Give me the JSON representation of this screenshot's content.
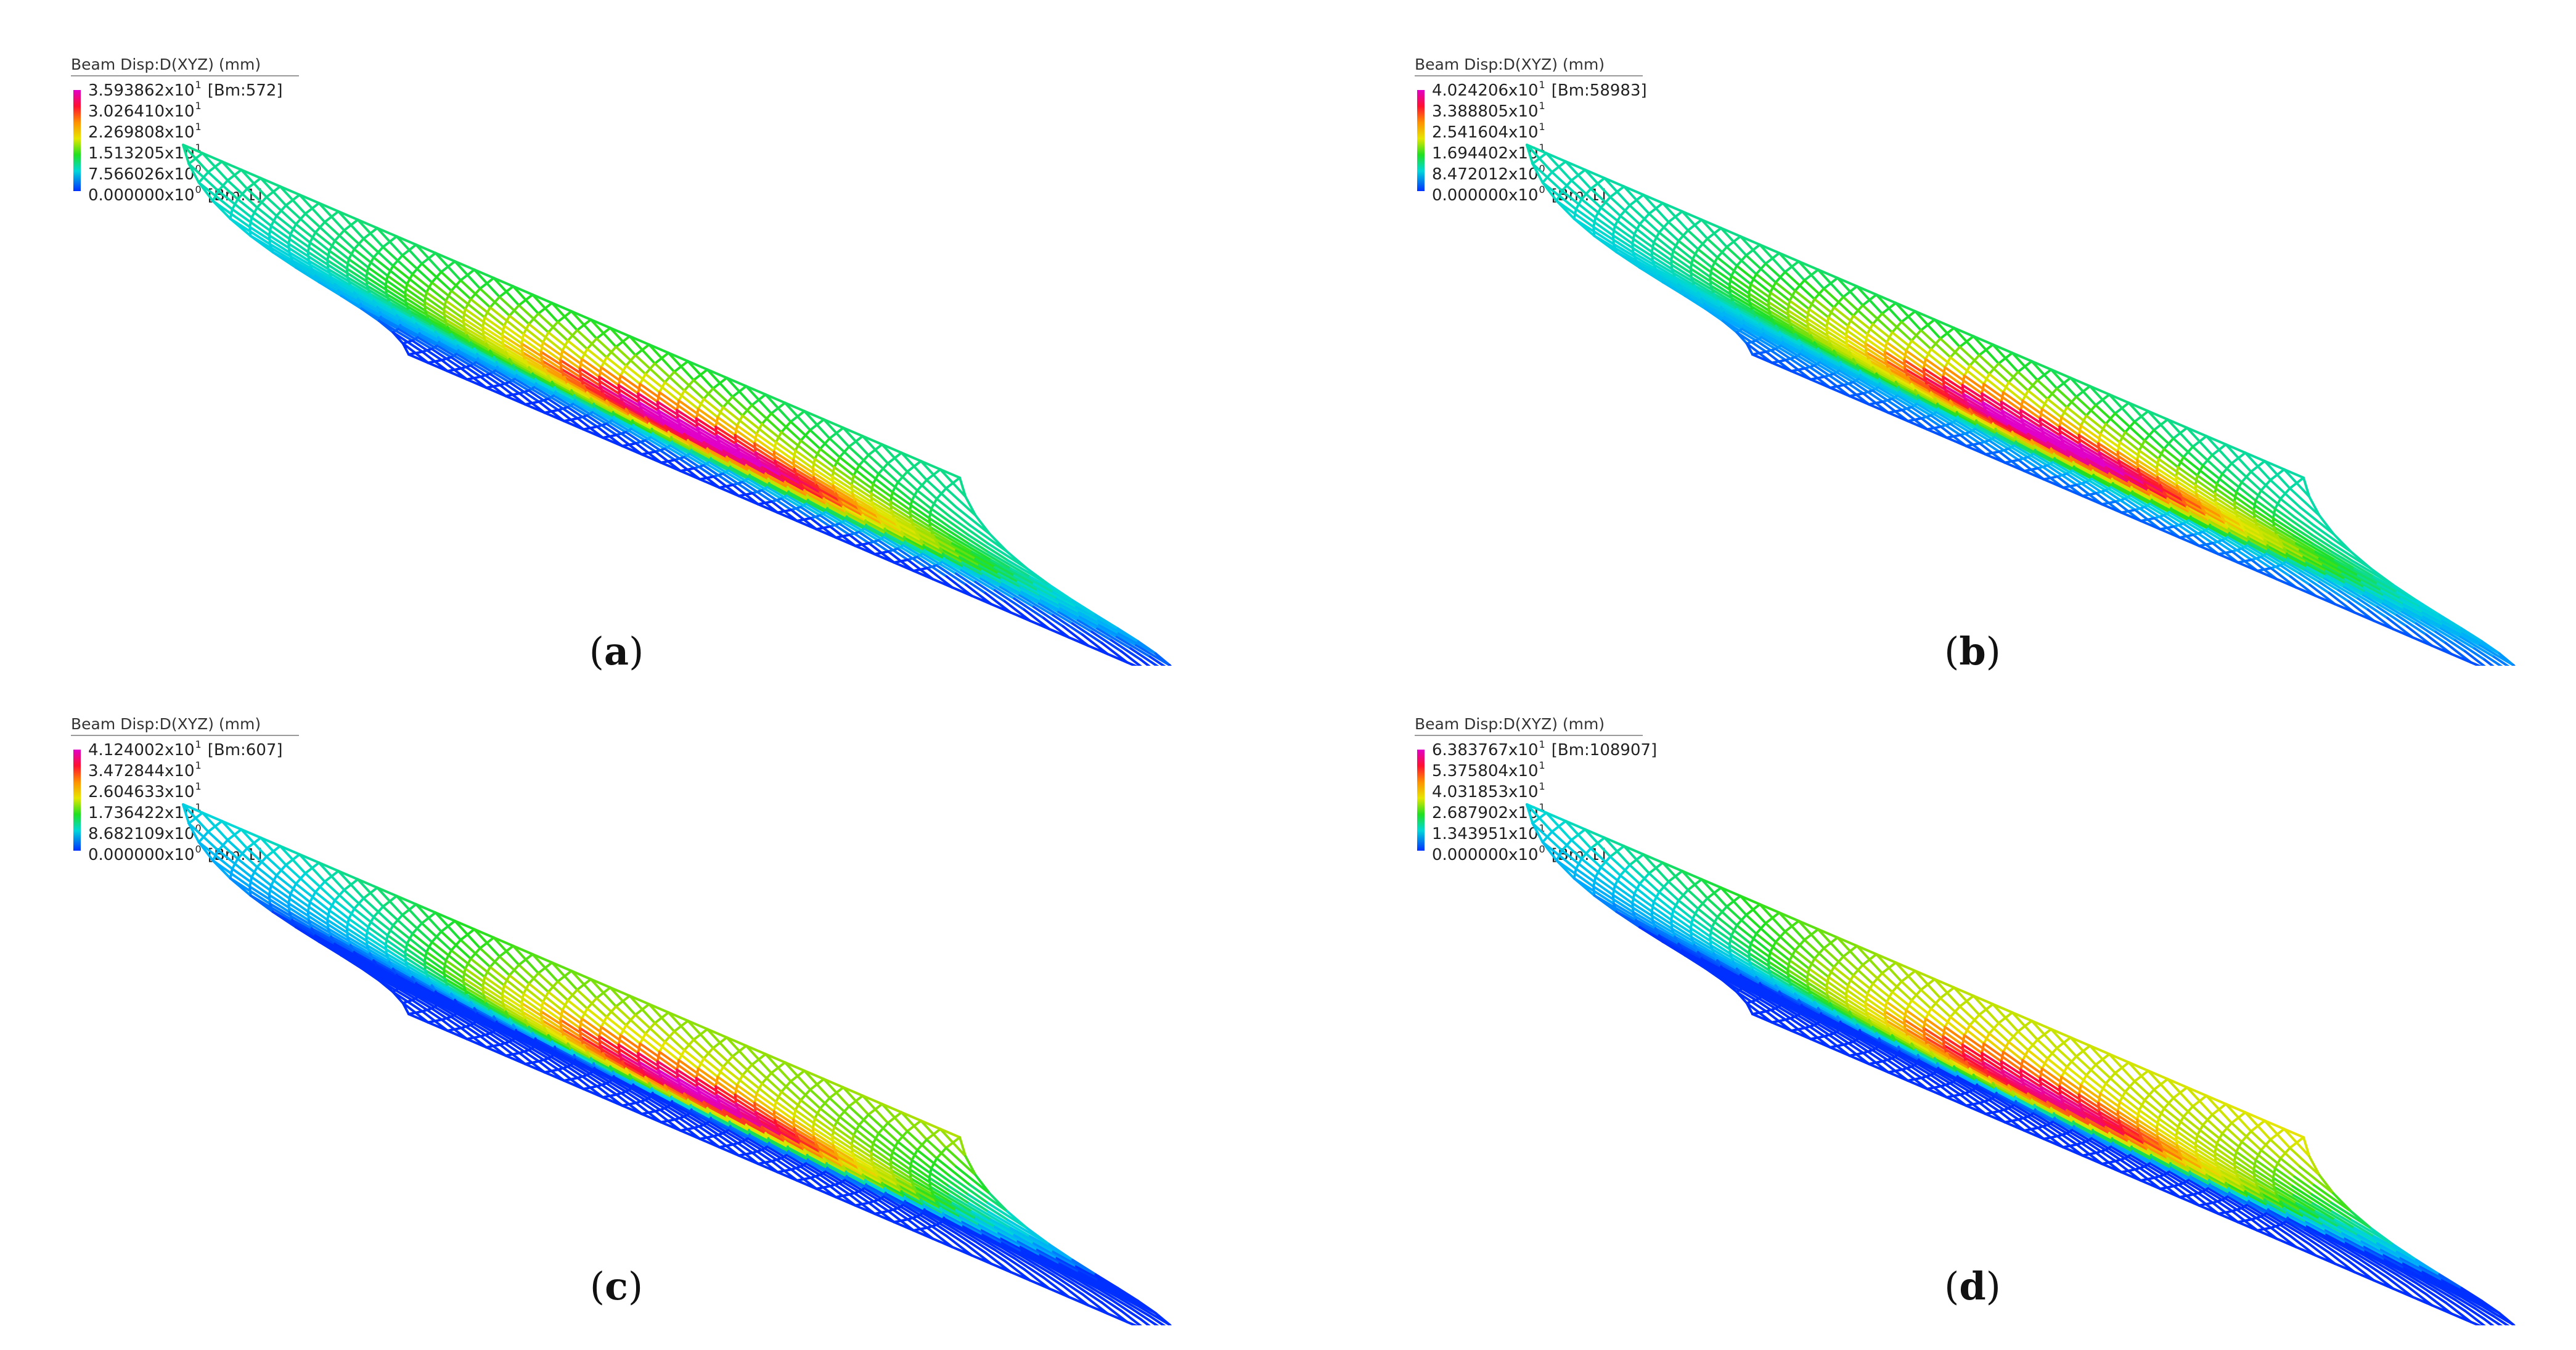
{
  "panels": [
    {
      "caption_letter": "a",
      "legend": {
        "title": "Beam Disp:D(XYZ)  (mm)",
        "entries": [
          {
            "mantissa": "3.593862x10",
            "exponent": "1",
            "suffix": "[Bm:572]"
          },
          {
            "mantissa": "3.026410x10",
            "exponent": "1",
            "suffix": ""
          },
          {
            "mantissa": "2.269808x10",
            "exponent": "1",
            "suffix": ""
          },
          {
            "mantissa": "1.513205x10",
            "exponent": "1",
            "suffix": ""
          },
          {
            "mantissa": "7.566026x10",
            "exponent": "0",
            "suffix": ""
          },
          {
            "mantissa": "0.000000x10",
            "exponent": "0",
            "suffix": "[Bm:1]"
          }
        ]
      }
    },
    {
      "caption_letter": "b",
      "legend": {
        "title": "Beam Disp:D(XYZ)  (mm)",
        "entries": [
          {
            "mantissa": "4.024206x10",
            "exponent": "1",
            "suffix": "[Bm:58983]"
          },
          {
            "mantissa": "3.388805x10",
            "exponent": "1",
            "suffix": ""
          },
          {
            "mantissa": "2.541604x10",
            "exponent": "1",
            "suffix": ""
          },
          {
            "mantissa": "1.694402x10",
            "exponent": "1",
            "suffix": ""
          },
          {
            "mantissa": "8.472012x10",
            "exponent": "0",
            "suffix": ""
          },
          {
            "mantissa": "0.000000x10",
            "exponent": "0",
            "suffix": "[Bm:1]"
          }
        ]
      }
    },
    {
      "caption_letter": "c",
      "legend": {
        "title": "Beam Disp:D(XYZ)  (mm)",
        "entries": [
          {
            "mantissa": "4.124002x10",
            "exponent": "1",
            "suffix": "[Bm:607]"
          },
          {
            "mantissa": "3.472844x10",
            "exponent": "1",
            "suffix": ""
          },
          {
            "mantissa": "2.604633x10",
            "exponent": "1",
            "suffix": ""
          },
          {
            "mantissa": "1.736422x10",
            "exponent": "1",
            "suffix": ""
          },
          {
            "mantissa": "8.682109x10",
            "exponent": "0",
            "suffix": ""
          },
          {
            "mantissa": "0.000000x10",
            "exponent": "0",
            "suffix": "[Bm:1]"
          }
        ]
      }
    },
    {
      "caption_letter": "d",
      "legend": {
        "title": "Beam Disp:D(XYZ)  (mm)",
        "entries": [
          {
            "mantissa": "6.383767x10",
            "exponent": "1",
            "suffix": "[Bm:108907]"
          },
          {
            "mantissa": "5.375804x10",
            "exponent": "1",
            "suffix": ""
          },
          {
            "mantissa": "4.031853x10",
            "exponent": "1",
            "suffix": ""
          },
          {
            "mantissa": "2.687902x10",
            "exponent": "1",
            "suffix": ""
          },
          {
            "mantissa": "1.343951x10",
            "exponent": "1",
            "suffix": ""
          },
          {
            "mantissa": "0.000000x10",
            "exponent": "0",
            "suffix": "[Bm:1]"
          }
        ]
      }
    }
  ],
  "colormap": [
    "#0030ff",
    "#00a8ff",
    "#00d8d8",
    "#20e020",
    "#b0e000",
    "#e6e600",
    "#ff9000",
    "#ff1030",
    "#e000c8"
  ]
}
